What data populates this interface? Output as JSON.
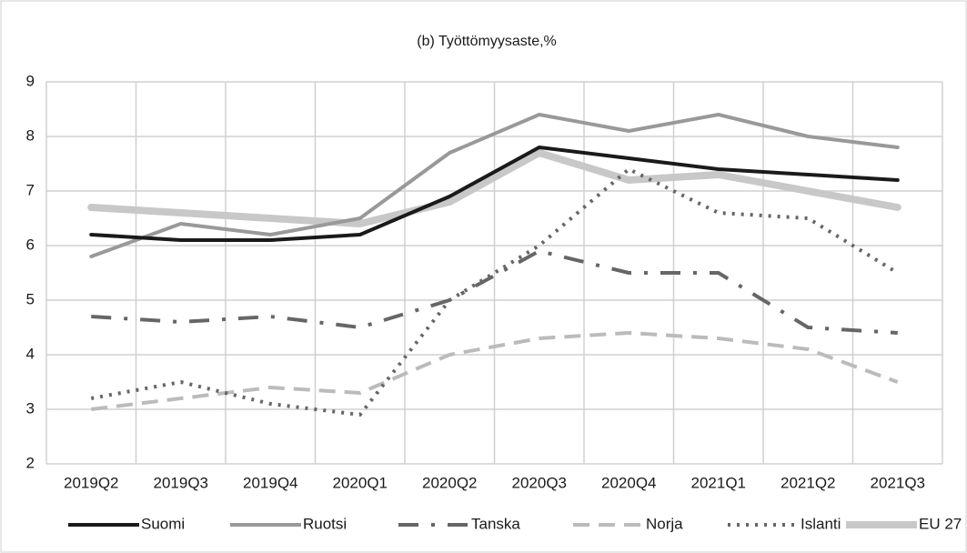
{
  "chart_data": {
    "type": "line",
    "title": "(b) Työttömyysaste,%",
    "categories": [
      "2019Q2",
      "2019Q3",
      "2019Q4",
      "2020Q1",
      "2020Q2",
      "2020Q3",
      "2020Q4",
      "2021Q1",
      "2021Q2",
      "2021Q3"
    ],
    "series": [
      {
        "name": "Suomi",
        "color": "#1a1a1a",
        "width": 4,
        "dash": "none",
        "values": [
          6.2,
          6.1,
          6.1,
          6.2,
          6.9,
          7.8,
          7.6,
          7.4,
          7.3,
          7.2
        ]
      },
      {
        "name": "Ruotsi",
        "color": "#999999",
        "width": 4,
        "dash": "none",
        "values": [
          5.8,
          6.4,
          6.2,
          6.5,
          7.7,
          8.4,
          8.1,
          8.4,
          8.0,
          7.8
        ]
      },
      {
        "name": "Tanska",
        "color": "#666666",
        "width": 4,
        "dash": "22 14 4 14",
        "values": [
          4.7,
          4.6,
          4.7,
          4.5,
          5.0,
          5.9,
          5.5,
          5.5,
          4.5,
          4.4
        ]
      },
      {
        "name": "Norja",
        "color": "#bbbbbb",
        "width": 4,
        "dash": "18 10",
        "values": [
          3.0,
          3.2,
          3.4,
          3.3,
          4.0,
          4.3,
          4.4,
          4.3,
          4.1,
          3.5
        ]
      },
      {
        "name": "Islanti",
        "color": "#666666",
        "width": 4,
        "dash": "3 7",
        "values": [
          3.2,
          3.5,
          3.1,
          2.9,
          5.0,
          6.0,
          7.4,
          6.6,
          6.5,
          5.5
        ]
      },
      {
        "name": "EU 27",
        "color": "#c8c8c8",
        "width": 8,
        "dash": "none",
        "values": [
          6.7,
          6.6,
          6.5,
          6.4,
          6.8,
          7.7,
          7.2,
          7.3,
          7.0,
          6.7
        ]
      }
    ],
    "ylim": [
      2,
      9
    ],
    "yticks": [
      2,
      3,
      4,
      5,
      6,
      7,
      8,
      9
    ],
    "grid": true,
    "legend": "bottom"
  }
}
